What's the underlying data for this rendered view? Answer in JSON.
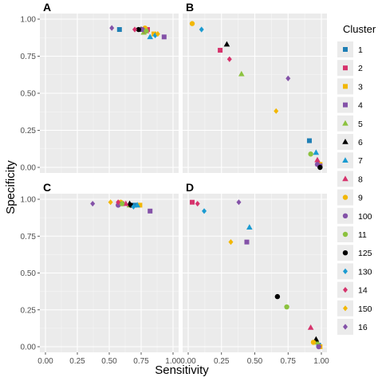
{
  "chart_data": {
    "type": "scatter",
    "facet_grid": "2x2",
    "xlabel": "Sensitivity",
    "ylabel": "Specificity",
    "xlim": [
      0,
      1
    ],
    "ylim": [
      0,
      1
    ],
    "x_ticks": [
      "0.00",
      "0.25",
      "0.50",
      "0.75",
      "1.00"
    ],
    "y_ticks": [
      "0.00",
      "0.25",
      "0.50",
      "0.75",
      "1.00"
    ],
    "grid": true,
    "legend_title": "Cluster",
    "legend_position": "right",
    "clusters": [
      {
        "label": "1",
        "shape": "square",
        "color": "#1f7fb5"
      },
      {
        "label": "2",
        "shape": "square",
        "color": "#d6336c"
      },
      {
        "label": "3",
        "shape": "square",
        "color": "#f2b705"
      },
      {
        "label": "4",
        "shape": "square",
        "color": "#8452a8"
      },
      {
        "label": "5",
        "shape": "triangle",
        "color": "#8cc23f"
      },
      {
        "label": "6",
        "shape": "triangle",
        "color": "#000000"
      },
      {
        "label": "7",
        "shape": "triangle",
        "color": "#1b9bd1"
      },
      {
        "label": "8",
        "shape": "triangle",
        "color": "#d6336c"
      },
      {
        "label": "9",
        "shape": "circle",
        "color": "#f2b705"
      },
      {
        "label": "100",
        "shape": "circle",
        "color": "#8452a8"
      },
      {
        "label": "11",
        "shape": "circle",
        "color": "#8cc23f"
      },
      {
        "label": "125",
        "shape": "circle",
        "color": "#000000"
      },
      {
        "label": "130",
        "shape": "diamond",
        "color": "#1b9bd1"
      },
      {
        "label": "14",
        "shape": "diamond",
        "color": "#d6336c"
      },
      {
        "label": "150",
        "shape": "diamond",
        "color": "#f2b705"
      },
      {
        "label": "16",
        "shape": "diamond",
        "color": "#8452a8"
      }
    ],
    "panels": [
      {
        "label": "A",
        "points": [
          {
            "cluster": "1",
            "x": 0.58,
            "y": 0.93
          },
          {
            "cluster": "2",
            "x": 0.8,
            "y": 0.93
          },
          {
            "cluster": "3",
            "x": 0.85,
            "y": 0.9
          },
          {
            "cluster": "4",
            "x": 0.93,
            "y": 0.88
          },
          {
            "cluster": "5",
            "x": 0.77,
            "y": 0.91
          },
          {
            "cluster": "6",
            "x": 0.75,
            "y": 0.93
          },
          {
            "cluster": "7",
            "x": 0.82,
            "y": 0.88
          },
          {
            "cluster": "8",
            "x": 0.79,
            "y": 0.92
          },
          {
            "cluster": "9",
            "x": 0.78,
            "y": 0.94
          },
          {
            "cluster": "100",
            "x": 0.76,
            "y": 0.93
          },
          {
            "cluster": "11",
            "x": 0.79,
            "y": 0.92
          },
          {
            "cluster": "125",
            "x": 0.73,
            "y": 0.93
          },
          {
            "cluster": "130",
            "x": 0.86,
            "y": 0.89
          },
          {
            "cluster": "14",
            "x": 0.7,
            "y": 0.93
          },
          {
            "cluster": "150",
            "x": 0.88,
            "y": 0.9
          },
          {
            "cluster": "16",
            "x": 0.52,
            "y": 0.94
          }
        ]
      },
      {
        "label": "B",
        "points": [
          {
            "cluster": "1",
            "x": 0.91,
            "y": 0.18
          },
          {
            "cluster": "2",
            "x": 0.24,
            "y": 0.79
          },
          {
            "cluster": "3",
            "x": 0.99,
            "y": 0.02
          },
          {
            "cluster": "4",
            "x": 0.99,
            "y": 0.01
          },
          {
            "cluster": "5",
            "x": 0.4,
            "y": 0.63
          },
          {
            "cluster": "6",
            "x": 0.29,
            "y": 0.83
          },
          {
            "cluster": "7",
            "x": 0.96,
            "y": 0.1
          },
          {
            "cluster": "8",
            "x": 0.97,
            "y": 0.05
          },
          {
            "cluster": "9",
            "x": 0.03,
            "y": 0.97
          },
          {
            "cluster": "100",
            "x": 0.97,
            "y": 0.02
          },
          {
            "cluster": "11",
            "x": 0.92,
            "y": 0.09
          },
          {
            "cluster": "125",
            "x": 0.99,
            "y": 0.0
          },
          {
            "cluster": "130",
            "x": 0.1,
            "y": 0.93
          },
          {
            "cluster": "14",
            "x": 0.31,
            "y": 0.73
          },
          {
            "cluster": "150",
            "x": 0.66,
            "y": 0.38
          },
          {
            "cluster": "16",
            "x": 0.75,
            "y": 0.6
          }
        ]
      },
      {
        "label": "C",
        "points": [
          {
            "cluster": "1",
            "x": 0.7,
            "y": 0.96
          },
          {
            "cluster": "2",
            "x": 0.6,
            "y": 0.97
          },
          {
            "cluster": "3",
            "x": 0.74,
            "y": 0.96
          },
          {
            "cluster": "4",
            "x": 0.82,
            "y": 0.92
          },
          {
            "cluster": "5",
            "x": 0.66,
            "y": 0.96
          },
          {
            "cluster": "6",
            "x": 0.66,
            "y": 0.97
          },
          {
            "cluster": "7",
            "x": 0.72,
            "y": 0.96
          },
          {
            "cluster": "8",
            "x": 0.63,
            "y": 0.97
          },
          {
            "cluster": "9",
            "x": 0.59,
            "y": 0.98
          },
          {
            "cluster": "100",
            "x": 0.57,
            "y": 0.96
          },
          {
            "cluster": "11",
            "x": 0.6,
            "y": 0.97
          },
          {
            "cluster": "125",
            "x": 0.67,
            "y": 0.96
          },
          {
            "cluster": "130",
            "x": 0.69,
            "y": 0.95
          },
          {
            "cluster": "14",
            "x": 0.57,
            "y": 0.98
          },
          {
            "cluster": "150",
            "x": 0.51,
            "y": 0.98
          },
          {
            "cluster": "16",
            "x": 0.37,
            "y": 0.97
          }
        ]
      },
      {
        "label": "D",
        "points": [
          {
            "cluster": "1",
            "x": 0.98,
            "y": 0.01
          },
          {
            "cluster": "2",
            "x": 0.03,
            "y": 0.98
          },
          {
            "cluster": "3",
            "x": 0.99,
            "y": 0.0
          },
          {
            "cluster": "4",
            "x": 0.44,
            "y": 0.71
          },
          {
            "cluster": "5",
            "x": 0.97,
            "y": 0.03
          },
          {
            "cluster": "6",
            "x": 0.96,
            "y": 0.05
          },
          {
            "cluster": "7",
            "x": 0.46,
            "y": 0.81
          },
          {
            "cluster": "8",
            "x": 0.92,
            "y": 0.13
          },
          {
            "cluster": "9",
            "x": 0.94,
            "y": 0.03
          },
          {
            "cluster": "100",
            "x": 0.98,
            "y": 0.0
          },
          {
            "cluster": "11",
            "x": 0.74,
            "y": 0.27
          },
          {
            "cluster": "125",
            "x": 0.67,
            "y": 0.34
          },
          {
            "cluster": "130",
            "x": 0.12,
            "y": 0.92
          },
          {
            "cluster": "14",
            "x": 0.07,
            "y": 0.97
          },
          {
            "cluster": "150",
            "x": 0.32,
            "y": 0.71
          },
          {
            "cluster": "16",
            "x": 0.38,
            "y": 0.98
          }
        ]
      }
    ]
  }
}
